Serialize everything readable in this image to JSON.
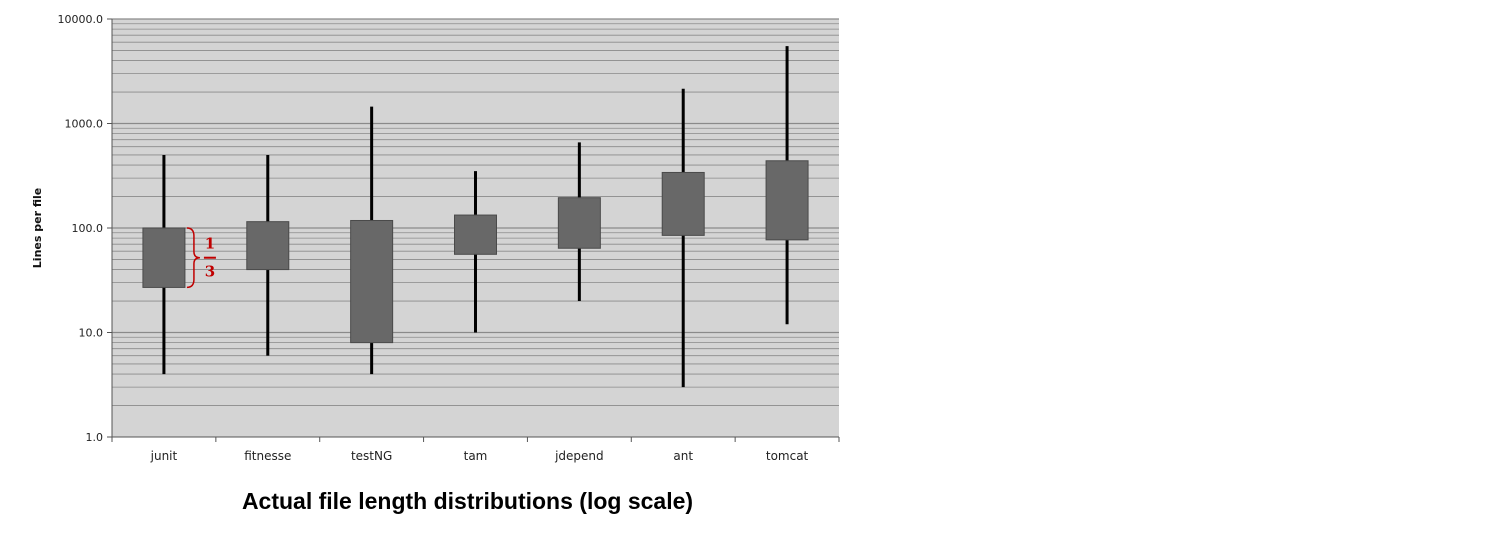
{
  "chart_data": {
    "type": "box",
    "title": "Actual file length distributions (log scale)",
    "ylabel": "Lines per file",
    "xlabel": "",
    "yscale": "log",
    "ylim": [
      1,
      10000
    ],
    "yticks": [
      "1.0",
      "10.0",
      "100.0",
      "1000.0",
      "10000.0"
    ],
    "grid": true,
    "categories": [
      "junit",
      "fitnesse",
      "testNG",
      "tam",
      "jdepend",
      "ant",
      "tomcat"
    ],
    "boxes": [
      {
        "min": 4,
        "q1": 27,
        "q3": 100,
        "max": 500
      },
      {
        "min": 6,
        "q1": 40,
        "q3": 115,
        "max": 500
      },
      {
        "min": 4,
        "q1": 8,
        "q3": 118,
        "max": 1450
      },
      {
        "min": 10,
        "q1": 56,
        "q3": 133,
        "max": 350
      },
      {
        "min": 20,
        "q1": 64,
        "q3": 195,
        "max": 660
      },
      {
        "min": 3,
        "q1": 85,
        "q3": 340,
        "max": 2150
      },
      {
        "min": 12,
        "q1": 77,
        "q3": 440,
        "max": 5500
      }
    ],
    "annotation": {
      "category": "junit",
      "numerator": "1",
      "denominator": "3",
      "color": "#c00000"
    },
    "colors": {
      "plot_bg": "#d4d4d4",
      "box": "#686868",
      "box_edge": "#4a4a4a",
      "whisker": "#000000",
      "grid": "#8a8a8a"
    }
  }
}
